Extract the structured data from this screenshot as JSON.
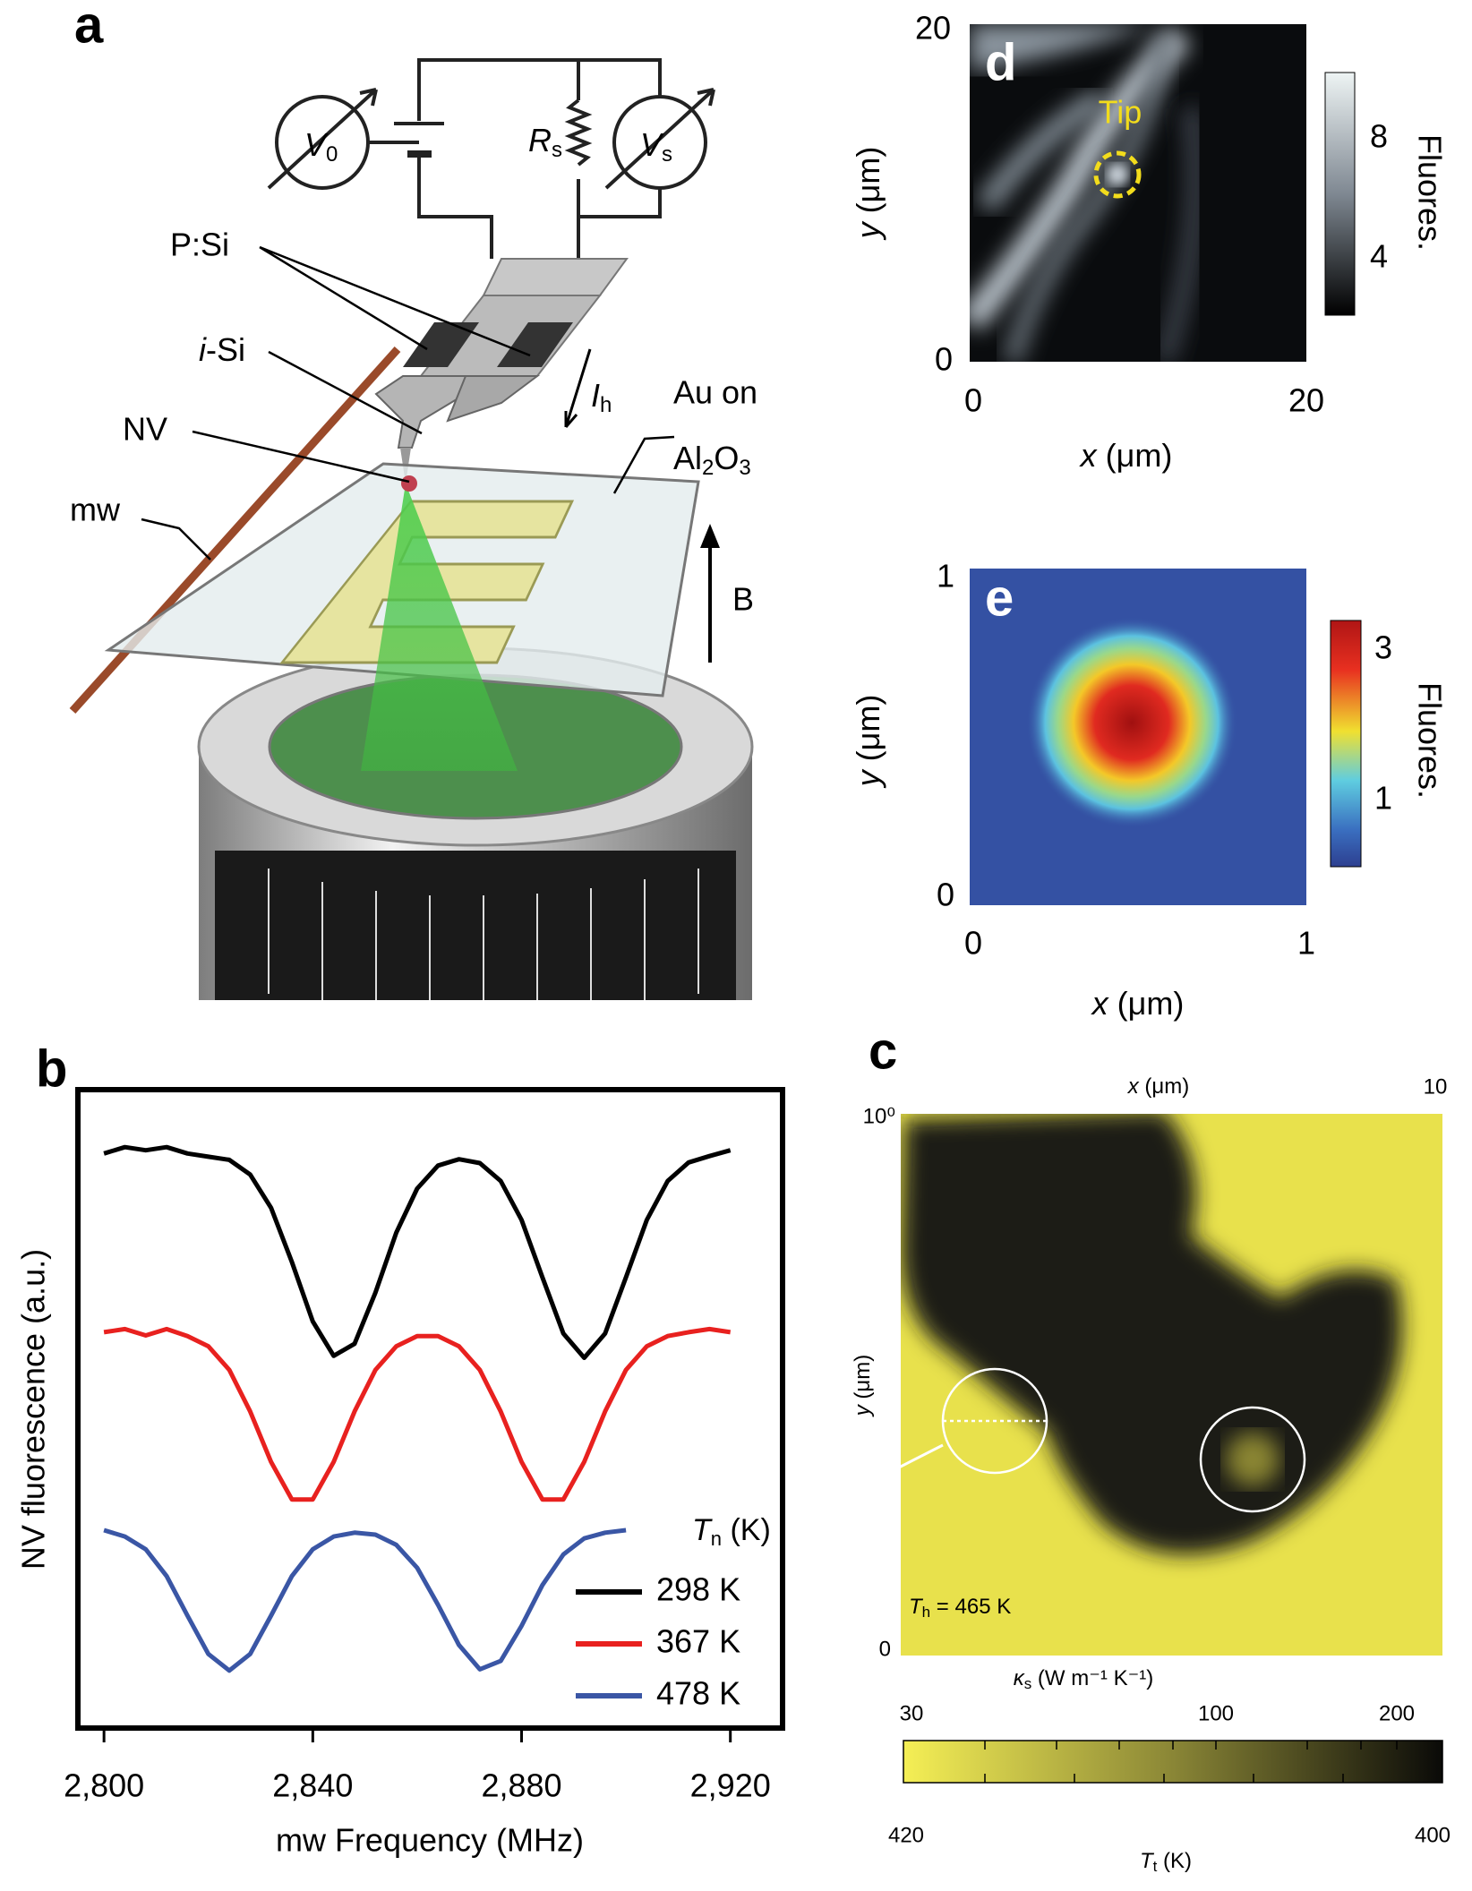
{
  "panel_a": {
    "label": "a",
    "v0": {
      "symbol": "V",
      "subscript": "0"
    },
    "rs": {
      "symbol": "R",
      "subscript": "s"
    },
    "vs": {
      "symbol": "V",
      "subscript": "s"
    },
    "psi": "P:Si",
    "isi": {
      "italic": "i",
      "rest": "-Si"
    },
    "ih": {
      "symbol": "I",
      "subscript": "h"
    },
    "nv": "NV",
    "au_on": "Au on",
    "al2o3": {
      "part1": "Al",
      "sub1": "2",
      "part2": "O",
      "sub2": "3"
    },
    "mw": "mw",
    "b_field": "B"
  },
  "panel_b": {
    "label": "b"
  },
  "chart_data": {
    "type": "line",
    "xlabel": "mw Frequency (MHz)",
    "ylabel": "NV fluorescence (a.u.)",
    "x": [
      2800,
      2804,
      2808,
      2812,
      2816,
      2820,
      2824,
      2828,
      2832,
      2836,
      2840,
      2844,
      2848,
      2852,
      2856,
      2860,
      2864,
      2868,
      2872,
      2876,
      2880,
      2884,
      2888,
      2892,
      2896,
      2900,
      2904,
      2908,
      2912,
      2916,
      2920
    ],
    "xlim": [
      2795,
      2930
    ],
    "xticks": [
      {
        "value": 2800,
        "label": "2,800"
      },
      {
        "value": 2840,
        "label": "2,840"
      },
      {
        "value": 2880,
        "label": "2,880"
      },
      {
        "value": 2920,
        "label": "2,920"
      }
    ],
    "ylim": [
      0,
      100
    ],
    "legend_title": {
      "symbol": "T",
      "subscript": "n",
      "unit": "(K)"
    },
    "legend": "lower right",
    "series": [
      {
        "name": "298 K",
        "color": "#000000",
        "values": [
          90,
          91,
          90.5,
          91,
          90,
          89.5,
          89,
          86.7,
          81.5,
          73,
          63.7,
          58.3,
          60.2,
          68.2,
          77.6,
          84.5,
          88.1,
          89.1,
          88.5,
          85.7,
          79.6,
          70.6,
          61.8,
          58,
          61.8,
          70.6,
          79.6,
          85.7,
          88.6,
          89.6,
          90.5
        ]
      },
      {
        "name": "367 K",
        "color": "#e8211f",
        "values": [
          62,
          62.5,
          61.5,
          62.5,
          61.4,
          59.8,
          56.1,
          49.6,
          41.7,
          35.8,
          35.8,
          41.7,
          49.6,
          56.1,
          59.8,
          61.4,
          61.4,
          59.8,
          56.1,
          49.6,
          41.7,
          35.8,
          35.8,
          41.7,
          49.6,
          56.1,
          59.8,
          61.4,
          62,
          62.5,
          62
        ]
      },
      {
        "name": "478 K",
        "color": "#3a56a5",
        "values": [
          31,
          30,
          28,
          23.8,
          17.6,
          11.6,
          9,
          11.6,
          17.6,
          23.8,
          28,
          30,
          30.6,
          30.3,
          28.7,
          25.1,
          19.3,
          13,
          9.2,
          10.5,
          16,
          22.4,
          27.2,
          29.7,
          30.6,
          31,
          null,
          null,
          null,
          null,
          null
        ]
      }
    ]
  },
  "panel_d": {
    "label": "d",
    "tip": "Tip",
    "y_top": 20,
    "y_bottom": 0,
    "x_left": 0,
    "x_right": 20,
    "xlabel": {
      "italic": "x",
      "unit": "(μm)"
    },
    "ylabel": {
      "italic": "y",
      "unit": "(μm)"
    },
    "colorbar_ticks": [
      8,
      4
    ],
    "colorbar_label": "Fluores."
  },
  "panel_e": {
    "label": "e",
    "y_top": 1,
    "y_bottom": 0,
    "x_left": 0,
    "x_right": 1,
    "xlabel": {
      "italic": "x",
      "unit": "(μm)"
    },
    "ylabel": {
      "italic": "y",
      "unit": "(μm)"
    },
    "colorbar_ticks": [
      3,
      1
    ],
    "colorbar_label": "Fluores."
  },
  "panel_c": {
    "label": "c",
    "xlabel": {
      "italic": "x",
      "unit": "(μm)"
    },
    "x_right": 10,
    "y_top": "10⁰",
    "y_bottom": 0,
    "ylabel": {
      "italic": "y",
      "unit": "(μm)"
    },
    "th": {
      "symbol": "T",
      "subscript": "h",
      "rest": " = 465 K"
    },
    "kappa": {
      "symbol": "κ",
      "subscript": "s",
      "rest": " (W m⁻¹ K⁻¹)"
    },
    "colorbar_top": [
      30,
      100,
      200
    ],
    "colorbar_bottom": [
      420,
      400
    ],
    "tt": {
      "symbol": "T",
      "subscript": "t",
      "rest": " (K)"
    }
  }
}
